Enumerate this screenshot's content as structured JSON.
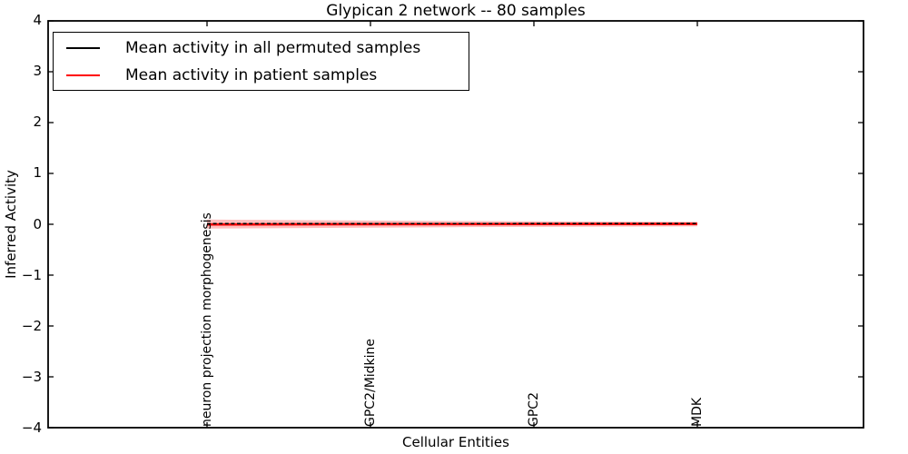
{
  "chart_data": {
    "type": "line",
    "title": "Glypican 2 network -- 80 samples",
    "xlabel": "Cellular Entities",
    "ylabel": "Inferred Activity",
    "ylim": [
      -4,
      4
    ],
    "yticks": [
      4,
      3,
      2,
      1,
      0,
      -1,
      -2,
      -3,
      -4
    ],
    "ytick_labels": [
      "4",
      "3",
      "2",
      "1",
      "0",
      "−1",
      "−2",
      "−3",
      "−4"
    ],
    "categories": [
      "neuron projection morphogenesis",
      "GPC2/Midkine",
      "GPC2",
      "MDK"
    ],
    "series": [
      {
        "name": "Mean activity in all permuted samples",
        "color": "#000000",
        "linestyle": "dashed",
        "values": [
          0.0,
          0.0,
          0.0,
          0.0
        ]
      },
      {
        "name": "Mean activity in patient samples",
        "color": "#ff0000",
        "linestyle": "solid",
        "values": [
          -0.01,
          -0.01,
          0.0,
          0.0
        ],
        "band_lower": [
          -0.09,
          -0.06,
          -0.05,
          -0.04
        ],
        "band_upper": [
          0.07,
          0.06,
          0.05,
          0.04
        ]
      }
    ],
    "band_color": "rgba(255,0,0,0.25)",
    "samples_count": 80,
    "legend_position": "upper left",
    "grid": false
  }
}
